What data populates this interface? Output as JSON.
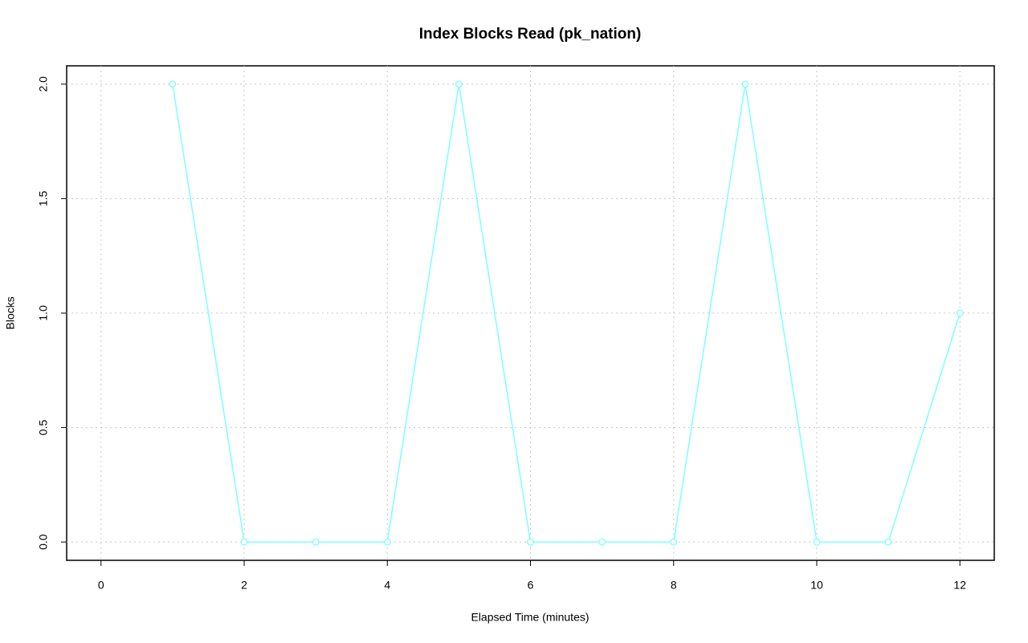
{
  "chart_data": {
    "type": "line",
    "title": "Index Blocks Read (pk_nation)",
    "xlabel": "Elapsed Time (minutes)",
    "ylabel": "Blocks",
    "x": [
      1,
      2,
      3,
      4,
      5,
      6,
      7,
      8,
      9,
      10,
      11,
      12
    ],
    "series": [
      {
        "color": "#7fffff",
        "values": [
          2,
          0,
          0,
          0,
          2,
          0,
          0,
          0,
          2,
          0,
          0,
          1
        ]
      }
    ],
    "xlim": [
      -0.48,
      12.48
    ],
    "ylim": [
      -0.08,
      2.08
    ],
    "xticks": [
      0,
      2,
      4,
      6,
      8,
      10,
      12
    ],
    "yticks": [
      {
        "value": 0,
        "label": "0.0"
      },
      {
        "value": 0.5,
        "label": "0.5"
      },
      {
        "value": 1,
        "label": "1.0"
      },
      {
        "value": 1.5,
        "label": "1.5"
      },
      {
        "value": 2,
        "label": "2.0"
      }
    ],
    "grid": true
  }
}
